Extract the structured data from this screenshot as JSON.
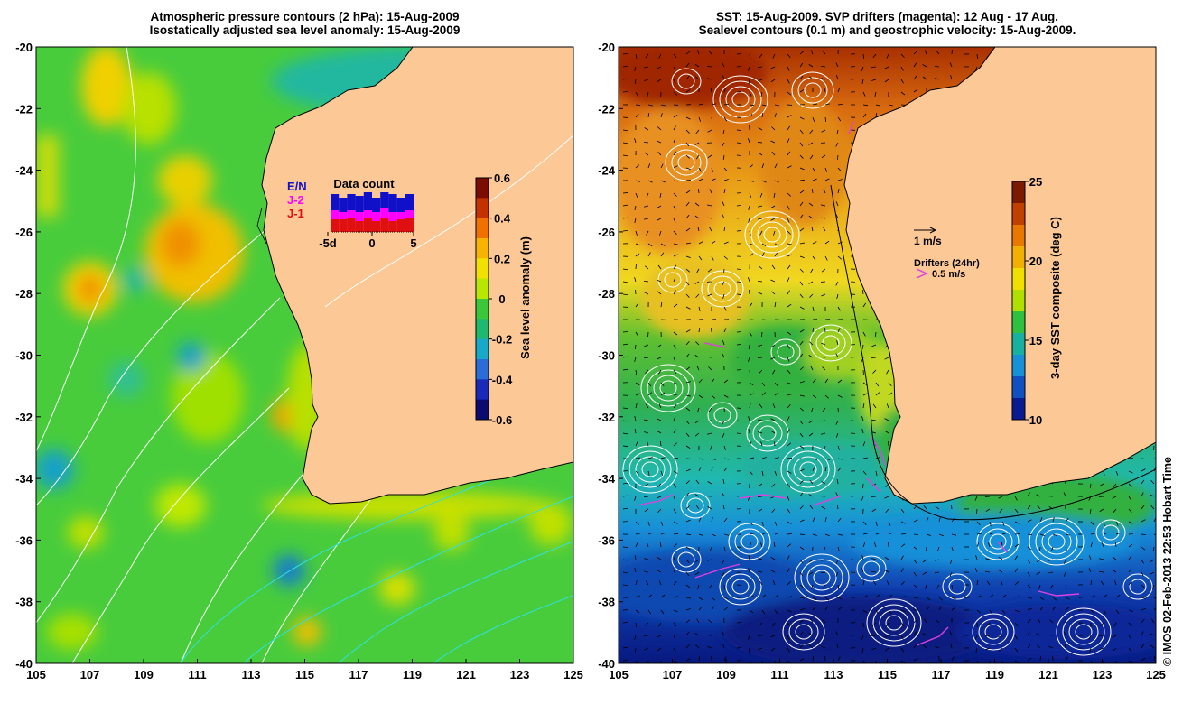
{
  "left_panel": {
    "title_line1": "Atmospheric pressure contours (2 hPa): 15-Aug-2009",
    "title_line2": "Isostatically adjusted sea level anomaly: 15-Aug-2009",
    "lat_ticks": [
      "-20",
      "-22",
      "-24",
      "-26",
      "-28",
      "-30",
      "-32",
      "-34",
      "-36",
      "-38",
      "-40"
    ],
    "lon_ticks": [
      "105",
      "107",
      "109",
      "111",
      "113",
      "115",
      "117",
      "119",
      "121",
      "123",
      "125"
    ],
    "colorbar": {
      "label": "Sea level anomaly (m)",
      "ticks": [
        "0.6",
        "0.4",
        "0.2",
        "0",
        "-0.2",
        "-0.4",
        "-0.6"
      ],
      "colors": [
        "#7a0d00",
        "#c43100",
        "#f07000",
        "#f6b300",
        "#f2e000",
        "#b8e800",
        "#3ac83a",
        "#1fb870",
        "#18a8c8",
        "#2a6cd8",
        "#1a2ab8",
        "#0a0a70"
      ]
    },
    "data_count": {
      "title": "Data count",
      "legend": [
        {
          "label": "E/N",
          "color": "#1010c8"
        },
        {
          "label": "J-2",
          "color": "#ff00ff"
        },
        {
          "label": "J-1",
          "color": "#e01010"
        }
      ],
      "axis_ticks": [
        "-5d",
        "0",
        "5"
      ],
      "bars": [
        {
          "day": -5,
          "j1": 7,
          "j2": 5,
          "en": 9
        },
        {
          "day": -4,
          "j1": 7,
          "j2": 4,
          "en": 8
        },
        {
          "day": -3,
          "j1": 8,
          "j2": 4,
          "en": 9
        },
        {
          "day": -2,
          "j1": 6,
          "j2": 5,
          "en": 9
        },
        {
          "day": -1,
          "j1": 8,
          "j2": 4,
          "en": 10
        },
        {
          "day": 0,
          "j1": 6,
          "j2": 5,
          "en": 8
        },
        {
          "day": 1,
          "j1": 8,
          "j2": 5,
          "en": 9
        },
        {
          "day": 2,
          "j1": 6,
          "j2": 5,
          "en": 10
        },
        {
          "day": 3,
          "j1": 7,
          "j2": 4,
          "en": 8
        },
        {
          "day": 4,
          "j1": 8,
          "j2": 4,
          "en": 9
        }
      ]
    }
  },
  "right_panel": {
    "title_line1": "SST: 15-Aug-2009. SVP drifters (magenta): 12 Aug - 17 Aug.",
    "title_line2": "Sealevel contours (0.1 m) and geostrophic velocity: 15-Aug-2009.",
    "lat_ticks": [
      "-20",
      "-22",
      "-24",
      "-26",
      "-28",
      "-30",
      "-32",
      "-34",
      "-36",
      "-38",
      "-40"
    ],
    "lon_ticks": [
      "105",
      "107",
      "109",
      "111",
      "113",
      "115",
      "117",
      "119",
      "121",
      "123",
      "125"
    ],
    "colorbar": {
      "label": "3-day SST composite (deg C)",
      "ticks": [
        "25",
        "20",
        "15",
        "10"
      ],
      "colors": [
        "#7a1a00",
        "#c04000",
        "#e87800",
        "#f2b000",
        "#f0e000",
        "#b0e000",
        "#30c040",
        "#18b0a0",
        "#1890d8",
        "#1050c0",
        "#0a1a90"
      ]
    },
    "velocity_legend": "1 m/s",
    "drifter_legend_title": "Drifters (24hr)",
    "drifter_legend_value": "0.5 m/s"
  },
  "colors": {
    "land": "#fcc896",
    "contour_white": "#ffffff",
    "contour_cyan": "#30e0e0",
    "drifter": "#e040e0"
  },
  "credit": "© IMOS 02-Feb-2013 22:53 Hobart Time"
}
